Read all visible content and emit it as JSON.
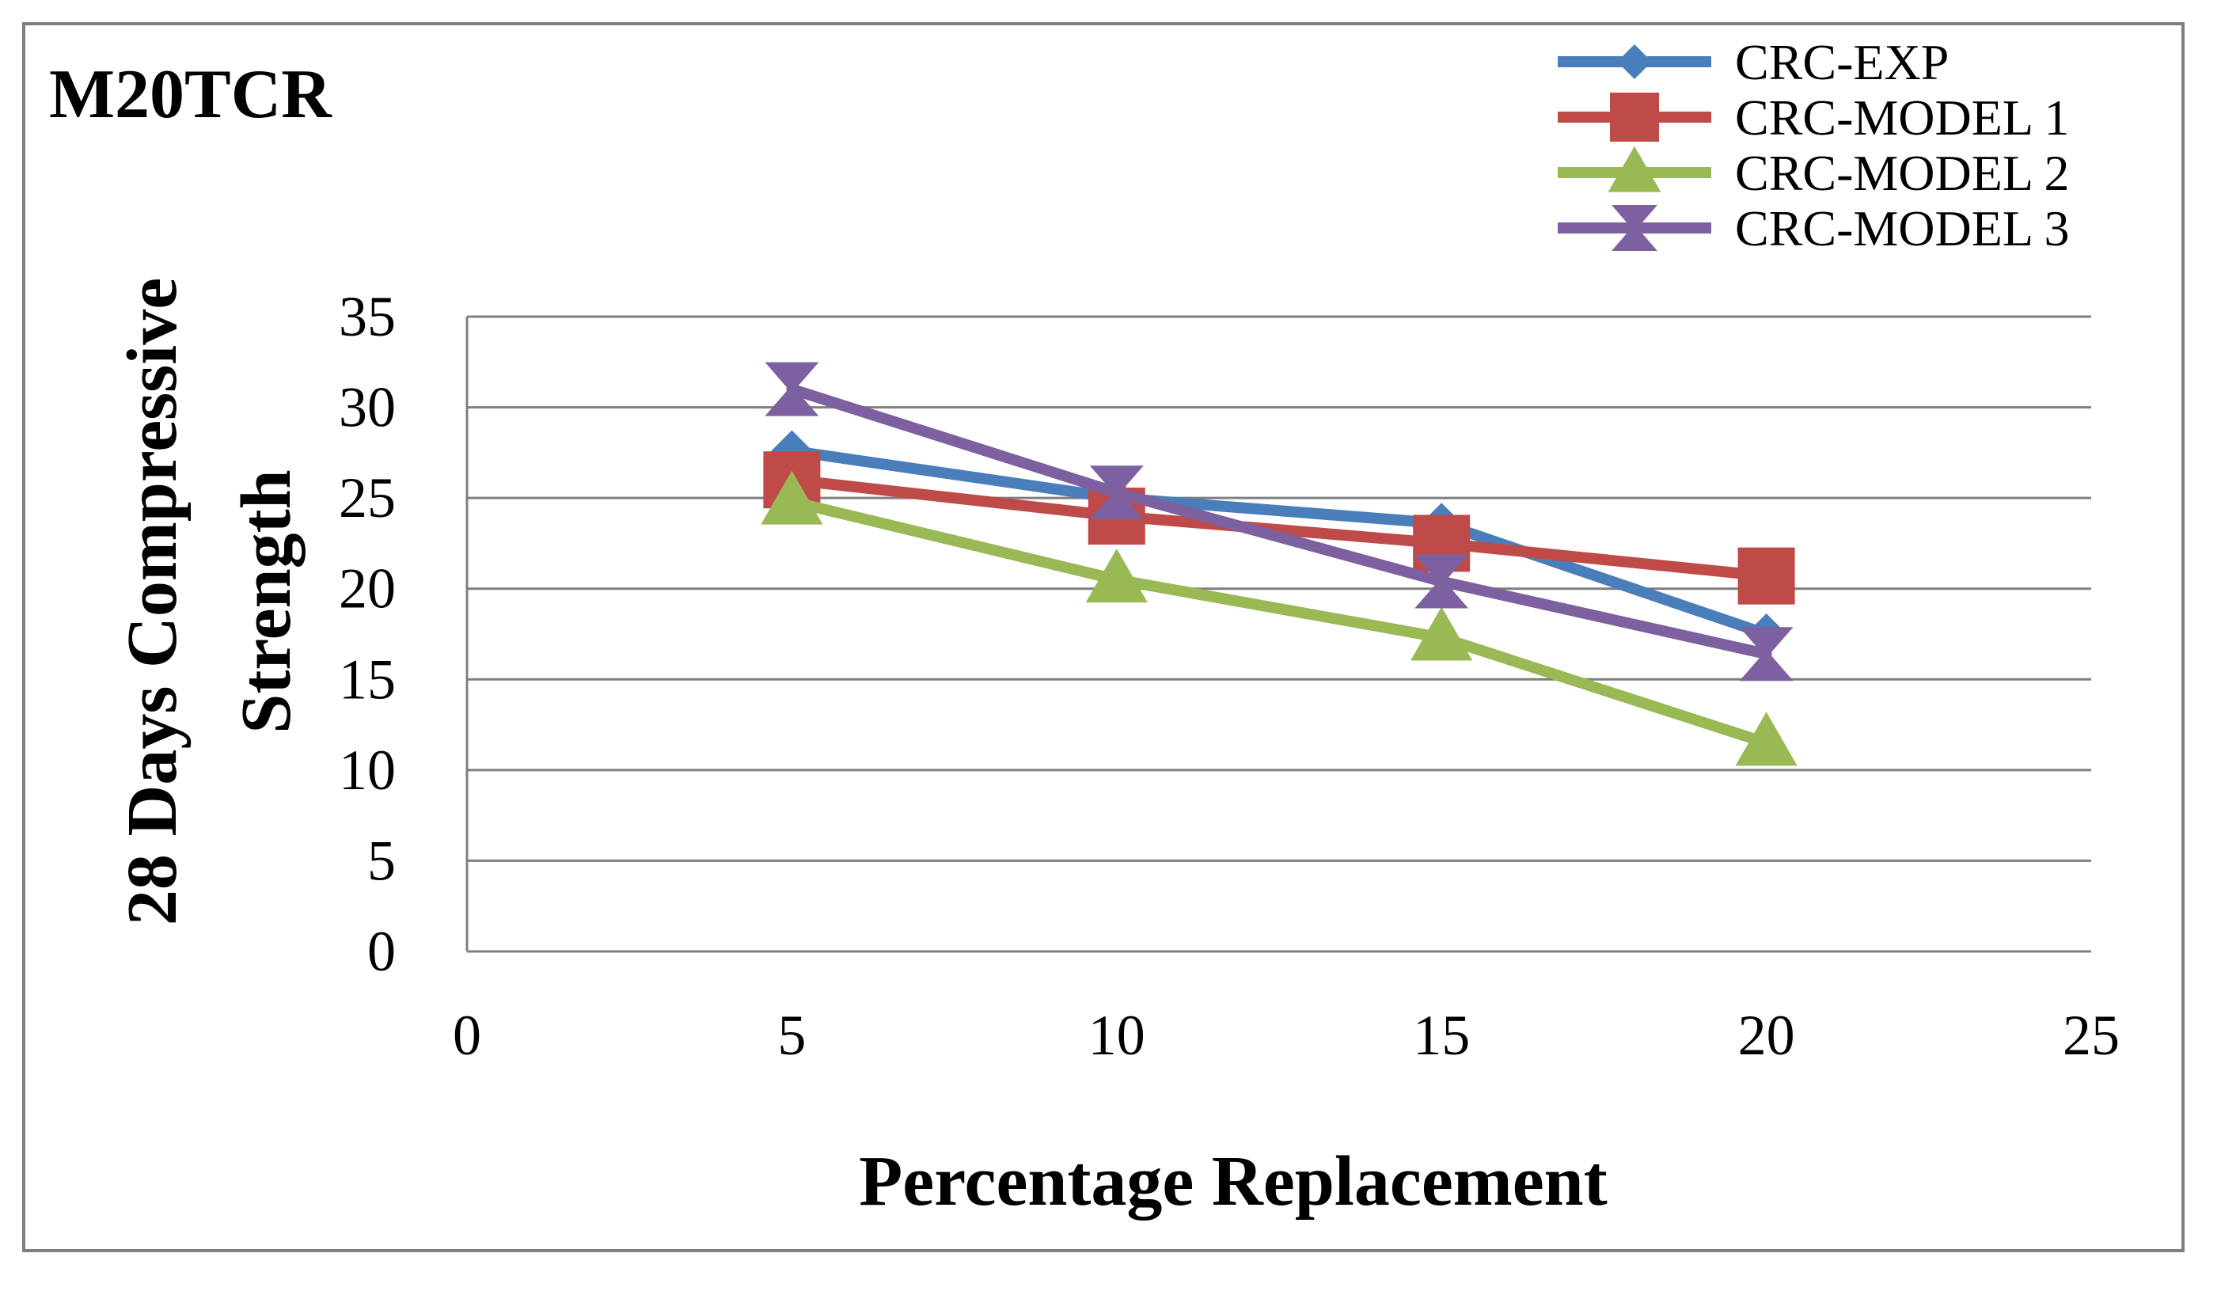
{
  "chart_data": {
    "type": "line",
    "title": "M20TCR",
    "xlabel": "Percentage Replacement",
    "ylabel_lines": [
      "28 Days Compressive",
      "Strength"
    ],
    "xlim": [
      0,
      25
    ],
    "ylim": [
      0,
      35
    ],
    "x_ticks": [
      0,
      5,
      10,
      15,
      20,
      25
    ],
    "y_ticks": [
      0,
      5,
      10,
      15,
      20,
      25,
      30,
      35
    ],
    "grid": true,
    "legend_position": "top-right",
    "x": [
      5,
      10,
      15,
      20
    ],
    "series": [
      {
        "name": "CRC-EXP",
        "color": "#4a7ebb",
        "marker": "diamond",
        "values": [
          27.6,
          25.0,
          23.6,
          17.5
        ]
      },
      {
        "name": "CRC-MODEL 1",
        "color": "#be4b48",
        "marker": "square",
        "values": [
          26.0,
          24.0,
          22.5,
          20.7
        ]
      },
      {
        "name": "CRC-MODEL 2",
        "color": "#98b954",
        "marker": "triangle",
        "values": [
          24.8,
          20.5,
          17.3,
          11.5
        ]
      },
      {
        "name": "CRC-MODEL 3",
        "color": "#7d60a0",
        "marker": "star",
        "values": [
          31.0,
          25.3,
          20.4,
          16.4
        ]
      }
    ]
  }
}
